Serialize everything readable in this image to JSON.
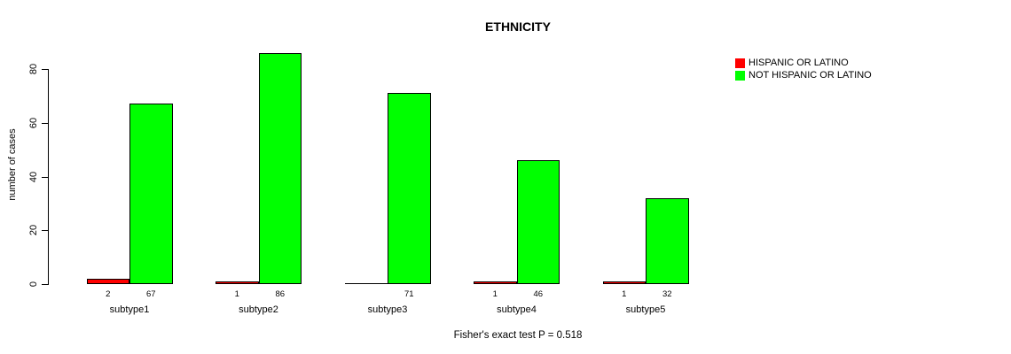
{
  "chart_data": {
    "type": "bar",
    "title": "ETHNICITY",
    "categories": [
      "subtype1",
      "subtype2",
      "subtype3",
      "subtype4",
      "subtype5"
    ],
    "series": [
      {
        "name": "HISPANIC OR LATINO",
        "color": "#FF0000",
        "values": [
          2,
          1,
          0,
          1,
          1
        ],
        "bar_labels": [
          "2",
          "1",
          "",
          "1",
          "1"
        ]
      },
      {
        "name": "NOT HISPANIC OR LATINO",
        "color": "#00FF00",
        "values": [
          67,
          86,
          71,
          46,
          32
        ],
        "bar_labels": [
          "67",
          "86",
          "71",
          "46",
          "32"
        ]
      }
    ],
    "xlabel": "",
    "ylabel": "number of cases",
    "ylim": [
      0,
      86
    ],
    "yticks": [
      0,
      20,
      40,
      60,
      80
    ],
    "grid": false,
    "legend_position": "top-right",
    "annotation": "Fisher's exact test P = 0.518"
  },
  "colors": {
    "background": "#FFFFFF",
    "axis": "#000000",
    "text": "#000000"
  }
}
